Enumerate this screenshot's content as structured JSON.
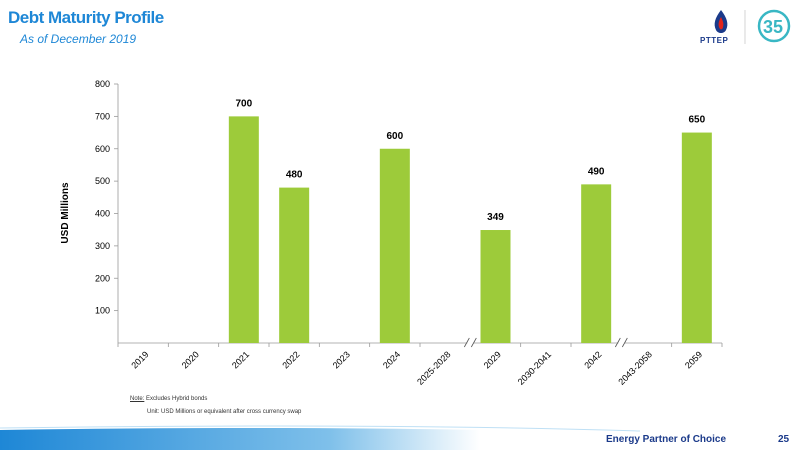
{
  "header": {
    "title": "Debt Maturity Profile",
    "subtitle": "As of December 2019",
    "logo_text": "PTTEP"
  },
  "chart_data": {
    "type": "bar",
    "title": "",
    "xlabel": "",
    "ylabel": "USD Millions",
    "ylim": [
      0,
      800
    ],
    "yticks": [
      100,
      200,
      300,
      400,
      500,
      600,
      700,
      800
    ],
    "grid": false,
    "axis_breaks_after": [
      "2025-2028",
      "2042"
    ],
    "categories": [
      "2019",
      "2020",
      "2021",
      "2022",
      "2023",
      "2024",
      "2025-2028",
      "2029",
      "2030-2041",
      "2042",
      "2043-2058",
      "2059"
    ],
    "values": [
      null,
      null,
      700,
      480,
      null,
      600,
      null,
      349,
      null,
      490,
      null,
      650
    ],
    "data_labels": [
      "",
      "",
      "700",
      "480",
      "",
      "600",
      "",
      "349",
      "",
      "490",
      "",
      "650"
    ],
    "bar_color": "#9dcb3a"
  },
  "notes": {
    "note_label": "Note:",
    "note_text": "Excludes Hybrid bonds",
    "unit_text": "Unit: USD Millions or equivalent after cross currency swap"
  },
  "footer": {
    "tagline": "Energy Partner of Choice",
    "page_number": "25"
  },
  "colors": {
    "accent": "#1e87d6",
    "navy": "#1b3a8a",
    "bar": "#9dcb3a"
  }
}
